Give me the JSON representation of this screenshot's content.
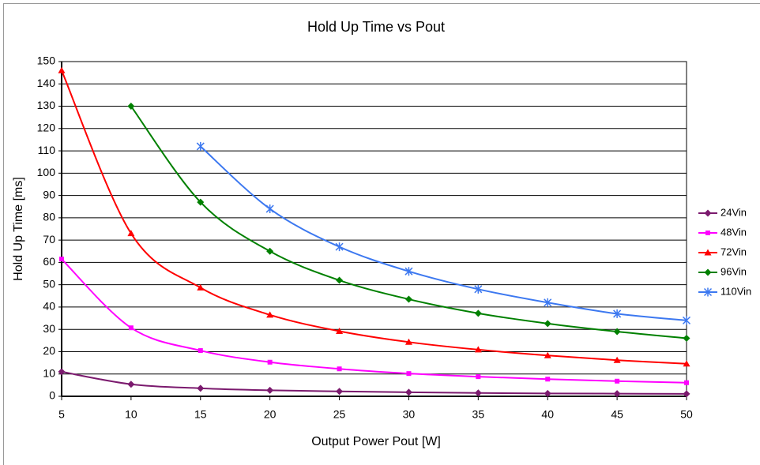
{
  "chart_data": {
    "type": "line",
    "title": "Hold Up Time vs Pout",
    "x_label": "Output Power Pout [W]",
    "y_label": "Hold Up Time [ms]",
    "x": [
      5,
      10,
      15,
      20,
      25,
      30,
      35,
      40,
      45,
      50
    ],
    "series": [
      {
        "name": "24Vin",
        "color": "#7b1a6e",
        "marker": "diamond",
        "values": [
          11,
          5.4,
          3.6,
          2.7,
          2.2,
          1.8,
          1.5,
          1.3,
          1.2,
          1.1
        ]
      },
      {
        "name": "48Vin",
        "color": "#ff00ff",
        "marker": "square",
        "values": [
          61.5,
          30.7,
          20.5,
          15.3,
          12.3,
          10.2,
          8.8,
          7.7,
          6.8,
          6.1
        ]
      },
      {
        "name": "72Vin",
        "color": "#ff0000",
        "marker": "triangle",
        "values": [
          146,
          73,
          48.7,
          36.5,
          29.2,
          24.3,
          20.9,
          18.3,
          16.2,
          14.6
        ]
      },
      {
        "name": "96Vin",
        "color": "#008000",
        "marker": "diamond",
        "values": [
          null,
          130,
          87,
          65,
          52,
          43.5,
          37.2,
          32.6,
          29,
          26
        ]
      },
      {
        "name": "110Vin",
        "color": "#3c78f0",
        "marker": "asterisk",
        "values": [
          null,
          null,
          112,
          84,
          67,
          56,
          48,
          42,
          37,
          34
        ]
      }
    ],
    "xlim": [
      5,
      50
    ],
    "xticks": [
      5,
      10,
      15,
      20,
      25,
      30,
      35,
      40,
      45,
      50
    ],
    "ylim": [
      0,
      150
    ],
    "yticks": [
      0,
      10,
      20,
      30,
      40,
      50,
      60,
      70,
      80,
      90,
      100,
      110,
      120,
      130,
      140,
      150
    ],
    "grid": true,
    "legend": "right"
  }
}
